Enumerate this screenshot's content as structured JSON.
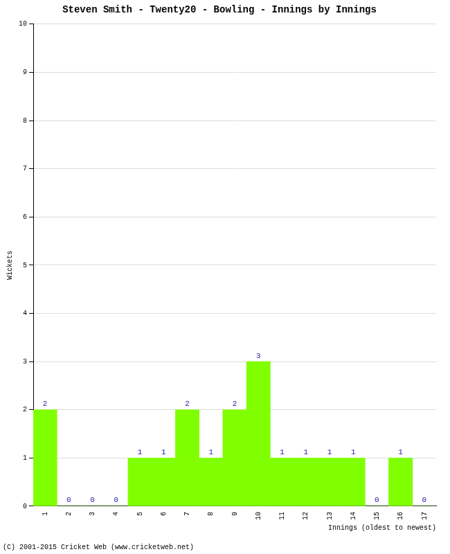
{
  "chart_data": {
    "type": "bar",
    "title": "Steven Smith - Twenty20 - Bowling - Innings by Innings",
    "x_label": "Innings (oldest to newest)",
    "y_label": "Wickets",
    "footer": "(C) 2001-2015 Cricket Web (www.cricketweb.net)",
    "categories": [
      "1",
      "2",
      "3",
      "4",
      "5",
      "6",
      "7",
      "8",
      "9",
      "10",
      "11",
      "12",
      "13",
      "14",
      "15",
      "16",
      "17"
    ],
    "values": [
      2,
      0,
      0,
      0,
      1,
      1,
      2,
      1,
      2,
      3,
      1,
      1,
      1,
      1,
      0,
      1,
      0
    ],
    "color": "#80ff00",
    "ylim": [
      0,
      10
    ],
    "yticks": [
      0,
      1,
      2,
      3,
      4,
      5,
      6,
      7,
      8,
      9,
      10
    ],
    "grid": true,
    "data_labels": true
  }
}
